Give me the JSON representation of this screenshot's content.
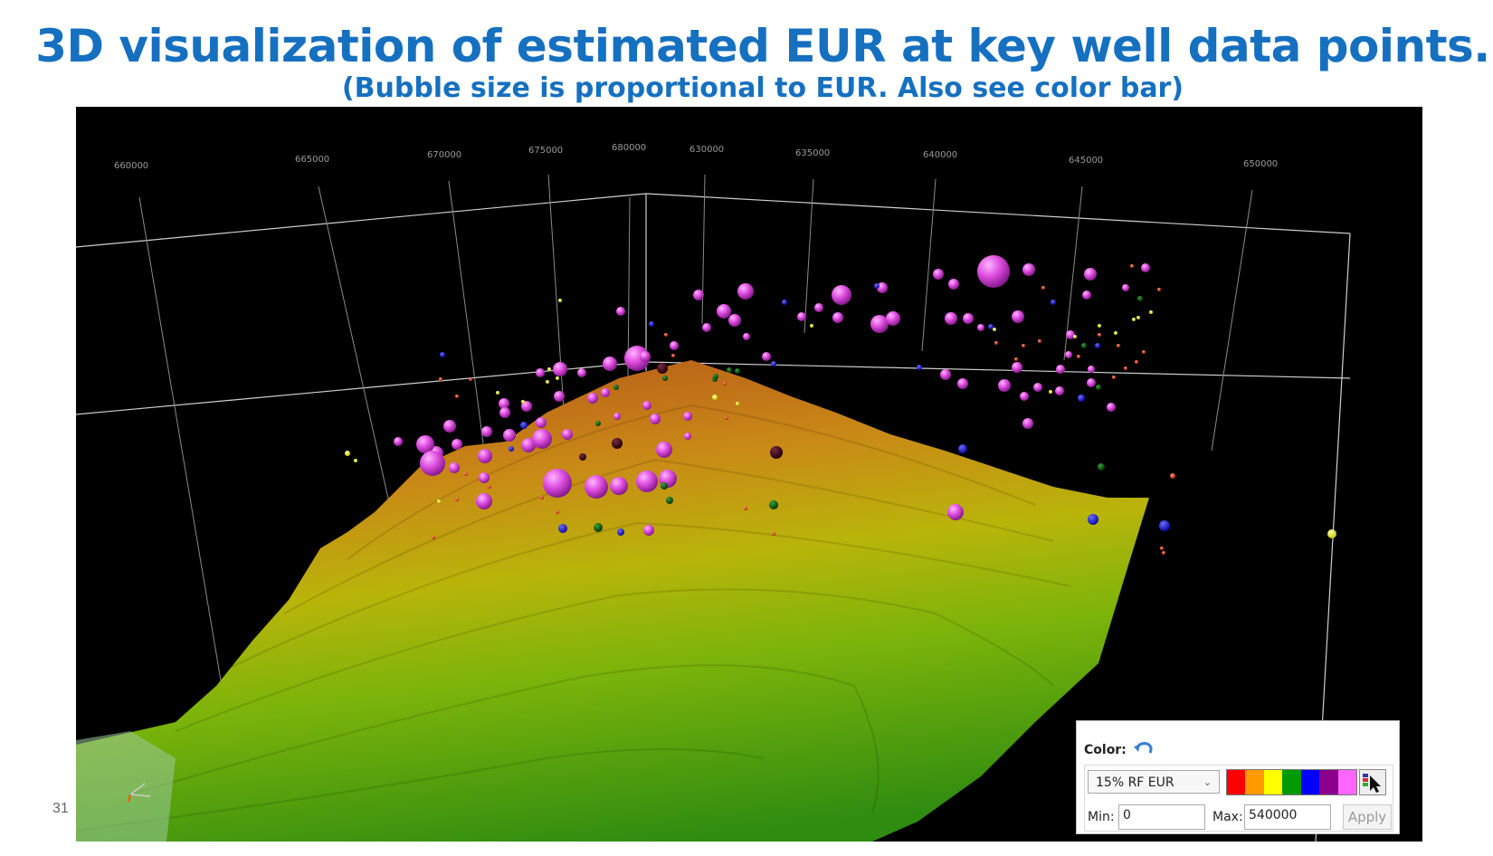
{
  "slide": {
    "title": "3D visualization of estimated EUR at key well data points.",
    "subtitle": "(Bubble size is proportional to EUR. Also see color bar)",
    "page_number": "31"
  },
  "axis": {
    "tick_labels": [
      "660000",
      "665000",
      "670000",
      "675000",
      "680000",
      "630000",
      "635000",
      "640000",
      "645000",
      "650000"
    ]
  },
  "color_panel": {
    "color_label": "Color:",
    "undo_icon": "undo-arrow-icon",
    "attribute": "15% RF EUR",
    "ramp_colors": [
      "#ff0000",
      "#ff9900",
      "#ffff00",
      "#009900",
      "#0000ff",
      "#8b008b",
      "#ff66ff"
    ],
    "picker_icon": "color-picker-cursor-icon",
    "min_label": "Min:",
    "min_value": "0",
    "max_label": "Max:",
    "max_value": "540000",
    "apply_label": "Apply"
  },
  "colors": {
    "title": "#1670c0",
    "bubble_high": "#e055e0",
    "bubble_blue": "#1a1aff",
    "bubble_yellow": "#ffff44",
    "bubble_red": "#ff3300",
    "bubble_green": "#0a6a0a"
  }
}
